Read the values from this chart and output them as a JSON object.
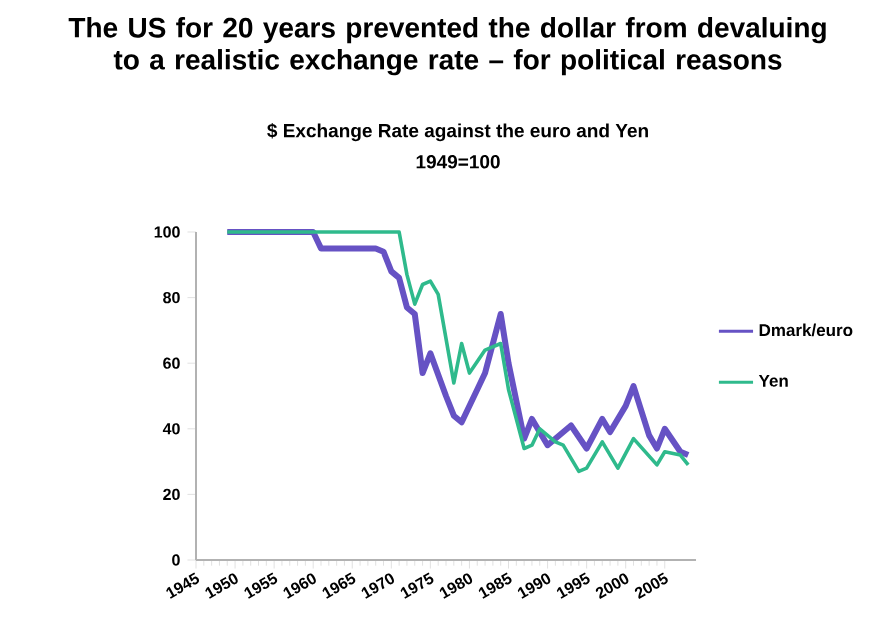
{
  "chart_data": {
    "type": "line",
    "title": "The US for 20 years prevented the dollar from devaluing to a realistic exchange rate – for political reasons",
    "subtitle": "$ Exchange Rate against the euro and Yen",
    "annotations": [
      "1949=100"
    ],
    "series": [
      {
        "name": "Dmark/euro",
        "color": "#6652c4",
        "x": [
          1949,
          1960,
          1961,
          1968,
          1969,
          1970,
          1971,
          1972,
          1973,
          1974,
          1975,
          1977,
          1978,
          1979,
          1981,
          1982,
          1984,
          1985,
          1987,
          1988,
          1990,
          1993,
          1995,
          1997,
          1998,
          2000,
          2001,
          2003,
          2004,
          2005,
          2007,
          2008
        ],
        "values": [
          100,
          100,
          95,
          95,
          94,
          88,
          86,
          77,
          75,
          57,
          63,
          50,
          44,
          42,
          52,
          57,
          75,
          60,
          37,
          43,
          35,
          41,
          34,
          43,
          39,
          47,
          53,
          38,
          34,
          40,
          33,
          32
        ]
      },
      {
        "name": "Yen",
        "color": "#2fba8c",
        "x": [
          1949,
          1971,
          1972,
          1973,
          1974,
          1975,
          1976,
          1978,
          1979,
          1980,
          1982,
          1984,
          1985,
          1987,
          1988,
          1989,
          1991,
          1992,
          1994,
          1995,
          1997,
          1999,
          2001,
          2004,
          2005,
          2007,
          2008
        ],
        "values": [
          100,
          100,
          87,
          78,
          84,
          85,
          81,
          54,
          66,
          57,
          64,
          66,
          52,
          34,
          35,
          40,
          36,
          35,
          27,
          28,
          36,
          28,
          37,
          29,
          33,
          32,
          29
        ]
      }
    ],
    "xlim": [
      1945,
      2009
    ],
    "xticks": [
      1945,
      1950,
      1955,
      1960,
      1965,
      1970,
      1975,
      1980,
      1985,
      1990,
      1995,
      2000,
      2005
    ],
    "ylim": [
      0,
      100
    ],
    "yticks": [
      0,
      20,
      40,
      60,
      80,
      100
    ],
    "legend": "right",
    "marker": "none",
    "line_style": "solid",
    "grid": false
  }
}
